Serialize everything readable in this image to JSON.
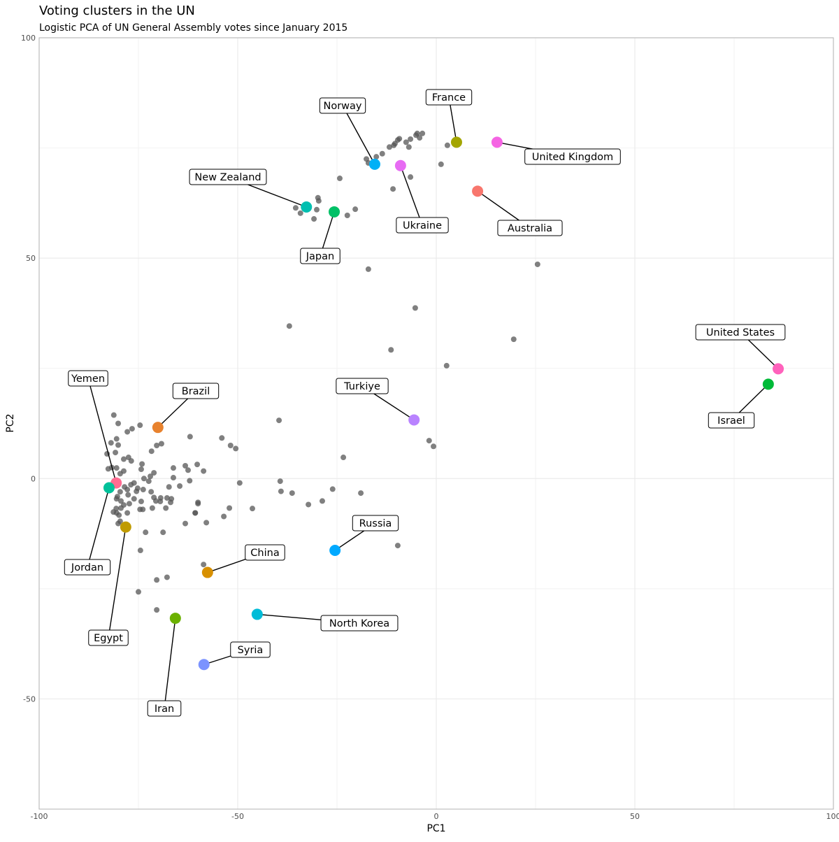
{
  "chart_data": {
    "type": "scatter",
    "title": "Voting clusters in the UN",
    "subtitle": "Logistic PCA of UN General Assembly votes since January 2015",
    "xlabel": "PC1",
    "ylabel": "PC2",
    "xlim": [
      -100,
      100
    ],
    "ylim": [
      -75,
      100
    ],
    "xticks": [
      -100,
      -50,
      0,
      50,
      100
    ],
    "yticks": [
      -50,
      0,
      50,
      100
    ],
    "grid": true,
    "legend": "none",
    "gray_point_color": "#555555",
    "labeled_points": [
      {
        "name": "Norway",
        "x": -15.5,
        "y": 71.3,
        "color": "#00B0F6"
      },
      {
        "name": "France",
        "x": 5.1,
        "y": 76.3,
        "color": "#A3A500"
      },
      {
        "name": "United Kingdom",
        "x": 15.3,
        "y": 76.3,
        "color": "#F564E3"
      },
      {
        "name": "Ukraine",
        "x": -9.0,
        "y": 71.0,
        "color": "#E76BF3"
      },
      {
        "name": "Australia",
        "x": 10.4,
        "y": 65.2,
        "color": "#F8766D"
      },
      {
        "name": "New Zealand",
        "x": -32.7,
        "y": 61.6,
        "color": "#00BFB0"
      },
      {
        "name": "Japan",
        "x": -25.7,
        "y": 60.5,
        "color": "#00C066"
      },
      {
        "name": "United States",
        "x": 86.1,
        "y": 24.9,
        "color": "#FF62BC"
      },
      {
        "name": "Israel",
        "x": 83.6,
        "y": 21.4,
        "color": "#00BA38"
      },
      {
        "name": "Turkiye",
        "x": -5.6,
        "y": 13.3,
        "color": "#B983FF"
      },
      {
        "name": "Brazil",
        "x": -70.1,
        "y": 11.6,
        "color": "#E8822E"
      },
      {
        "name": "Yemen",
        "x": -80.6,
        "y": -1.0,
        "color": "#FF6C91"
      },
      {
        "name": "Jordan",
        "x": -82.4,
        "y": -2.1,
        "color": "#00C19A"
      },
      {
        "name": "Egypt",
        "x": -78.2,
        "y": -11.0,
        "color": "#C09B00"
      },
      {
        "name": "Russia",
        "x": -25.5,
        "y": -16.3,
        "color": "#00A9FF"
      },
      {
        "name": "China",
        "x": -57.6,
        "y": -21.3,
        "color": "#D89000"
      },
      {
        "name": "North Korea",
        "x": -45.1,
        "y": -30.8,
        "color": "#00BCD8"
      },
      {
        "name": "Iran",
        "x": -65.7,
        "y": -31.7,
        "color": "#6BB100"
      },
      {
        "name": "Syria",
        "x": -58.5,
        "y": -42.2,
        "color": "#7B93FF"
      }
    ],
    "other_points": [
      [
        -17.6,
        72.5
      ],
      [
        -17.1,
        71.6
      ],
      [
        -15.1,
        73
      ],
      [
        -13.6,
        73.7
      ],
      [
        -11.8,
        75.2
      ],
      [
        -10.4,
        76
      ],
      [
        -9.7,
        76.8
      ],
      [
        -9.3,
        77.1
      ],
      [
        -10.7,
        75.6
      ],
      [
        -7.6,
        76.3
      ],
      [
        -6.9,
        75.2
      ],
      [
        -6.5,
        77
      ],
      [
        -5.1,
        77.9
      ],
      [
        -4.8,
        78.3
      ],
      [
        -3.5,
        78.3
      ],
      [
        -4.2,
        77.3
      ],
      [
        2.8,
        75.6
      ],
      [
        1.2,
        71.3
      ],
      [
        -6.5,
        68.4
      ],
      [
        -10.9,
        65.7
      ],
      [
        -24.3,
        68.1
      ],
      [
        -29.8,
        63.7
      ],
      [
        -29.6,
        63
      ],
      [
        -30.1,
        61
      ],
      [
        -30.8,
        58.9
      ],
      [
        -35.4,
        61.4
      ],
      [
        -34.2,
        60.2
      ],
      [
        -22.4,
        59.7
      ],
      [
        -20.4,
        61.1
      ],
      [
        -17.1,
        47.5
      ],
      [
        25.5,
        48.6
      ],
      [
        -5.3,
        38.7
      ],
      [
        -37,
        34.6
      ],
      [
        -11.4,
        29.2
      ],
      [
        19.5,
        31.6
      ],
      [
        2.6,
        25.6
      ],
      [
        -39.6,
        13.2
      ],
      [
        -1.8,
        8.6
      ],
      [
        -0.7,
        7.3
      ],
      [
        -23.4,
        4.8
      ],
      [
        -39.3,
        -0.6
      ],
      [
        -49.5,
        -1
      ],
      [
        -54,
        9.2
      ],
      [
        -51.8,
        7.5
      ],
      [
        -50.5,
        6.8
      ],
      [
        -39.1,
        -2.9
      ],
      [
        -36.3,
        -3.3
      ],
      [
        -26.1,
        -2.4
      ],
      [
        -19,
        -3.3
      ],
      [
        -32.2,
        -5.9
      ],
      [
        -28.7,
        -5.1
      ],
      [
        -46.3,
        -6.8
      ],
      [
        -52.1,
        -6.7
      ],
      [
        -53.5,
        -8.6
      ],
      [
        -9.7,
        -15.2
      ],
      [
        -58.6,
        -19.5
      ],
      [
        -60,
        -5.4
      ],
      [
        -60.7,
        -7.8
      ],
      [
        -81.2,
        14.4
      ],
      [
        -80.1,
        12.5
      ],
      [
        -77.8,
        10.6
      ],
      [
        -76.6,
        11.3
      ],
      [
        -74.6,
        12.1
      ],
      [
        -62.0,
        9.5
      ],
      [
        -80.5,
        9.0
      ],
      [
        -81.9,
        8.1
      ],
      [
        -80.1,
        7.6
      ],
      [
        -70.4,
        7.5
      ],
      [
        -69.2,
        7.9
      ],
      [
        -80.8,
        5.9
      ],
      [
        -82.9,
        5.6
      ],
      [
        -71.7,
        6.2
      ],
      [
        -78.7,
        4.4
      ],
      [
        -77.5,
        4.8
      ],
      [
        -76.8,
        4.0
      ],
      [
        -74.1,
        3.3
      ],
      [
        -81.7,
        2.5
      ],
      [
        -82.6,
        2.2
      ],
      [
        -80.5,
        2.4
      ],
      [
        -74.3,
        2.1
      ],
      [
        -66.2,
        2.4
      ],
      [
        -63.2,
        2.9
      ],
      [
        -60.2,
        3.2
      ],
      [
        -62.5,
        1.9
      ],
      [
        -58.6,
        1.7
      ],
      [
        -79.6,
        1.1
      ],
      [
        -78.7,
        1.7
      ],
      [
        -71.1,
        1.3
      ],
      [
        -72.0,
        0.5
      ],
      [
        -73.6,
        0
      ],
      [
        -66.2,
        0.2
      ],
      [
        -72.4,
        -0.6
      ],
      [
        -62.1,
        -0.5
      ],
      [
        -76.1,
        -1.0
      ],
      [
        -76.9,
        -1.4
      ],
      [
        -78.5,
        -1.9
      ],
      [
        -67.3,
        -1.9
      ],
      [
        -64.6,
        -1.7
      ],
      [
        -75.2,
        -2.2
      ],
      [
        -73.8,
        -2.5
      ],
      [
        -75.5,
        -2.9
      ],
      [
        -77.8,
        -2.5
      ],
      [
        -79.6,
        -3.0
      ],
      [
        -71.8,
        -3.0
      ],
      [
        -77.6,
        -3.7
      ],
      [
        -80.3,
        -4.1
      ],
      [
        -80.5,
        -4.6
      ],
      [
        -76.1,
        -4.6
      ],
      [
        -71.1,
        -4.3
      ],
      [
        -69.4,
        -4.4
      ],
      [
        -67.8,
        -4.4
      ],
      [
        -66.7,
        -4.6
      ],
      [
        -70.6,
        -5.1
      ],
      [
        -69.5,
        -5.2
      ],
      [
        -74.3,
        -5.2
      ],
      [
        -79.4,
        -5.1
      ],
      [
        -78.7,
        -6.0
      ],
      [
        -77.3,
        -5.7
      ],
      [
        -66.9,
        -5.4
      ],
      [
        -80.6,
        -6.8
      ],
      [
        -79.4,
        -6.7
      ],
      [
        -71.5,
        -6.7
      ],
      [
        -74.6,
        -7.0
      ],
      [
        -73.9,
        -7.0
      ],
      [
        -68.1,
        -6.7
      ],
      [
        -60.0,
        -5.7
      ],
      [
        -81.3,
        -7.6
      ],
      [
        -80.5,
        -7.8
      ],
      [
        -77.8,
        -7.8
      ],
      [
        -79.9,
        -8.3
      ],
      [
        -60.7,
        -7.8
      ],
      [
        -79.6,
        -9.7
      ],
      [
        -80.1,
        -10.2
      ],
      [
        -63.2,
        -10.2
      ],
      [
        -57.9,
        -10.0
      ],
      [
        -73.2,
        -12.2
      ],
      [
        -68.8,
        -12.2
      ],
      [
        -74.5,
        -16.3
      ],
      [
        -67.8,
        -22.4
      ],
      [
        -70.4,
        -23.0
      ],
      [
        -75.0,
        -25.7
      ],
      [
        -70.4,
        -29.8
      ]
    ]
  }
}
